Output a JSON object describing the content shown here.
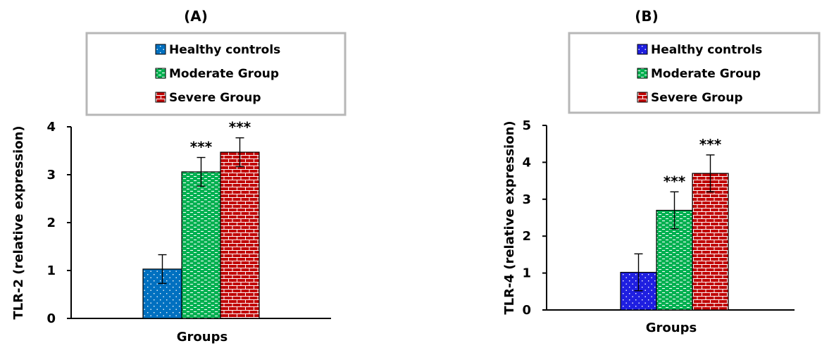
{
  "chart_data": [
    {
      "type": "bar",
      "title": "(A)",
      "xlabel": "Groups",
      "ylabel": "TLR-2 (relative expression)",
      "ylim": [
        0,
        4
      ],
      "yticks": [
        "0",
        "1",
        "2",
        "3",
        "4"
      ],
      "legend": {
        "placement": "top",
        "entries": [
          "Healthy controls",
          "Moderate Group",
          "Severe Group"
        ]
      },
      "colors": [
        "#0070C0",
        "#00B050",
        "#C00000"
      ],
      "series": [
        {
          "name": "Healthy controls",
          "values": [
            1.03
          ],
          "error": [
            0.3
          ],
          "significance": ""
        },
        {
          "name": "Moderate Group",
          "values": [
            3.06
          ],
          "error": [
            0.3
          ],
          "significance": "***"
        },
        {
          "name": "Severe Group",
          "values": [
            3.47
          ],
          "error": [
            0.3
          ],
          "significance": "***"
        }
      ]
    },
    {
      "type": "bar",
      "title": "(B)",
      "xlabel": "Groups",
      "ylabel": "TLR-4 (relative expression)",
      "ylim": [
        0,
        5
      ],
      "yticks": [
        "0",
        "1",
        "2",
        "3",
        "4",
        "5"
      ],
      "legend": {
        "placement": "top",
        "entries": [
          "Healthy controls",
          "Moderate Group",
          "Severe Group"
        ]
      },
      "colors": [
        "#1F1FE0",
        "#00B050",
        "#C00000"
      ],
      "series": [
        {
          "name": "Healthy controls",
          "values": [
            1.02
          ],
          "error": [
            0.5
          ],
          "significance": ""
        },
        {
          "name": "Moderate Group",
          "values": [
            2.7
          ],
          "error": [
            0.5
          ],
          "significance": "***"
        },
        {
          "name": "Severe Group",
          "values": [
            3.7
          ],
          "error": [
            0.5
          ],
          "significance": "***"
        }
      ]
    }
  ]
}
